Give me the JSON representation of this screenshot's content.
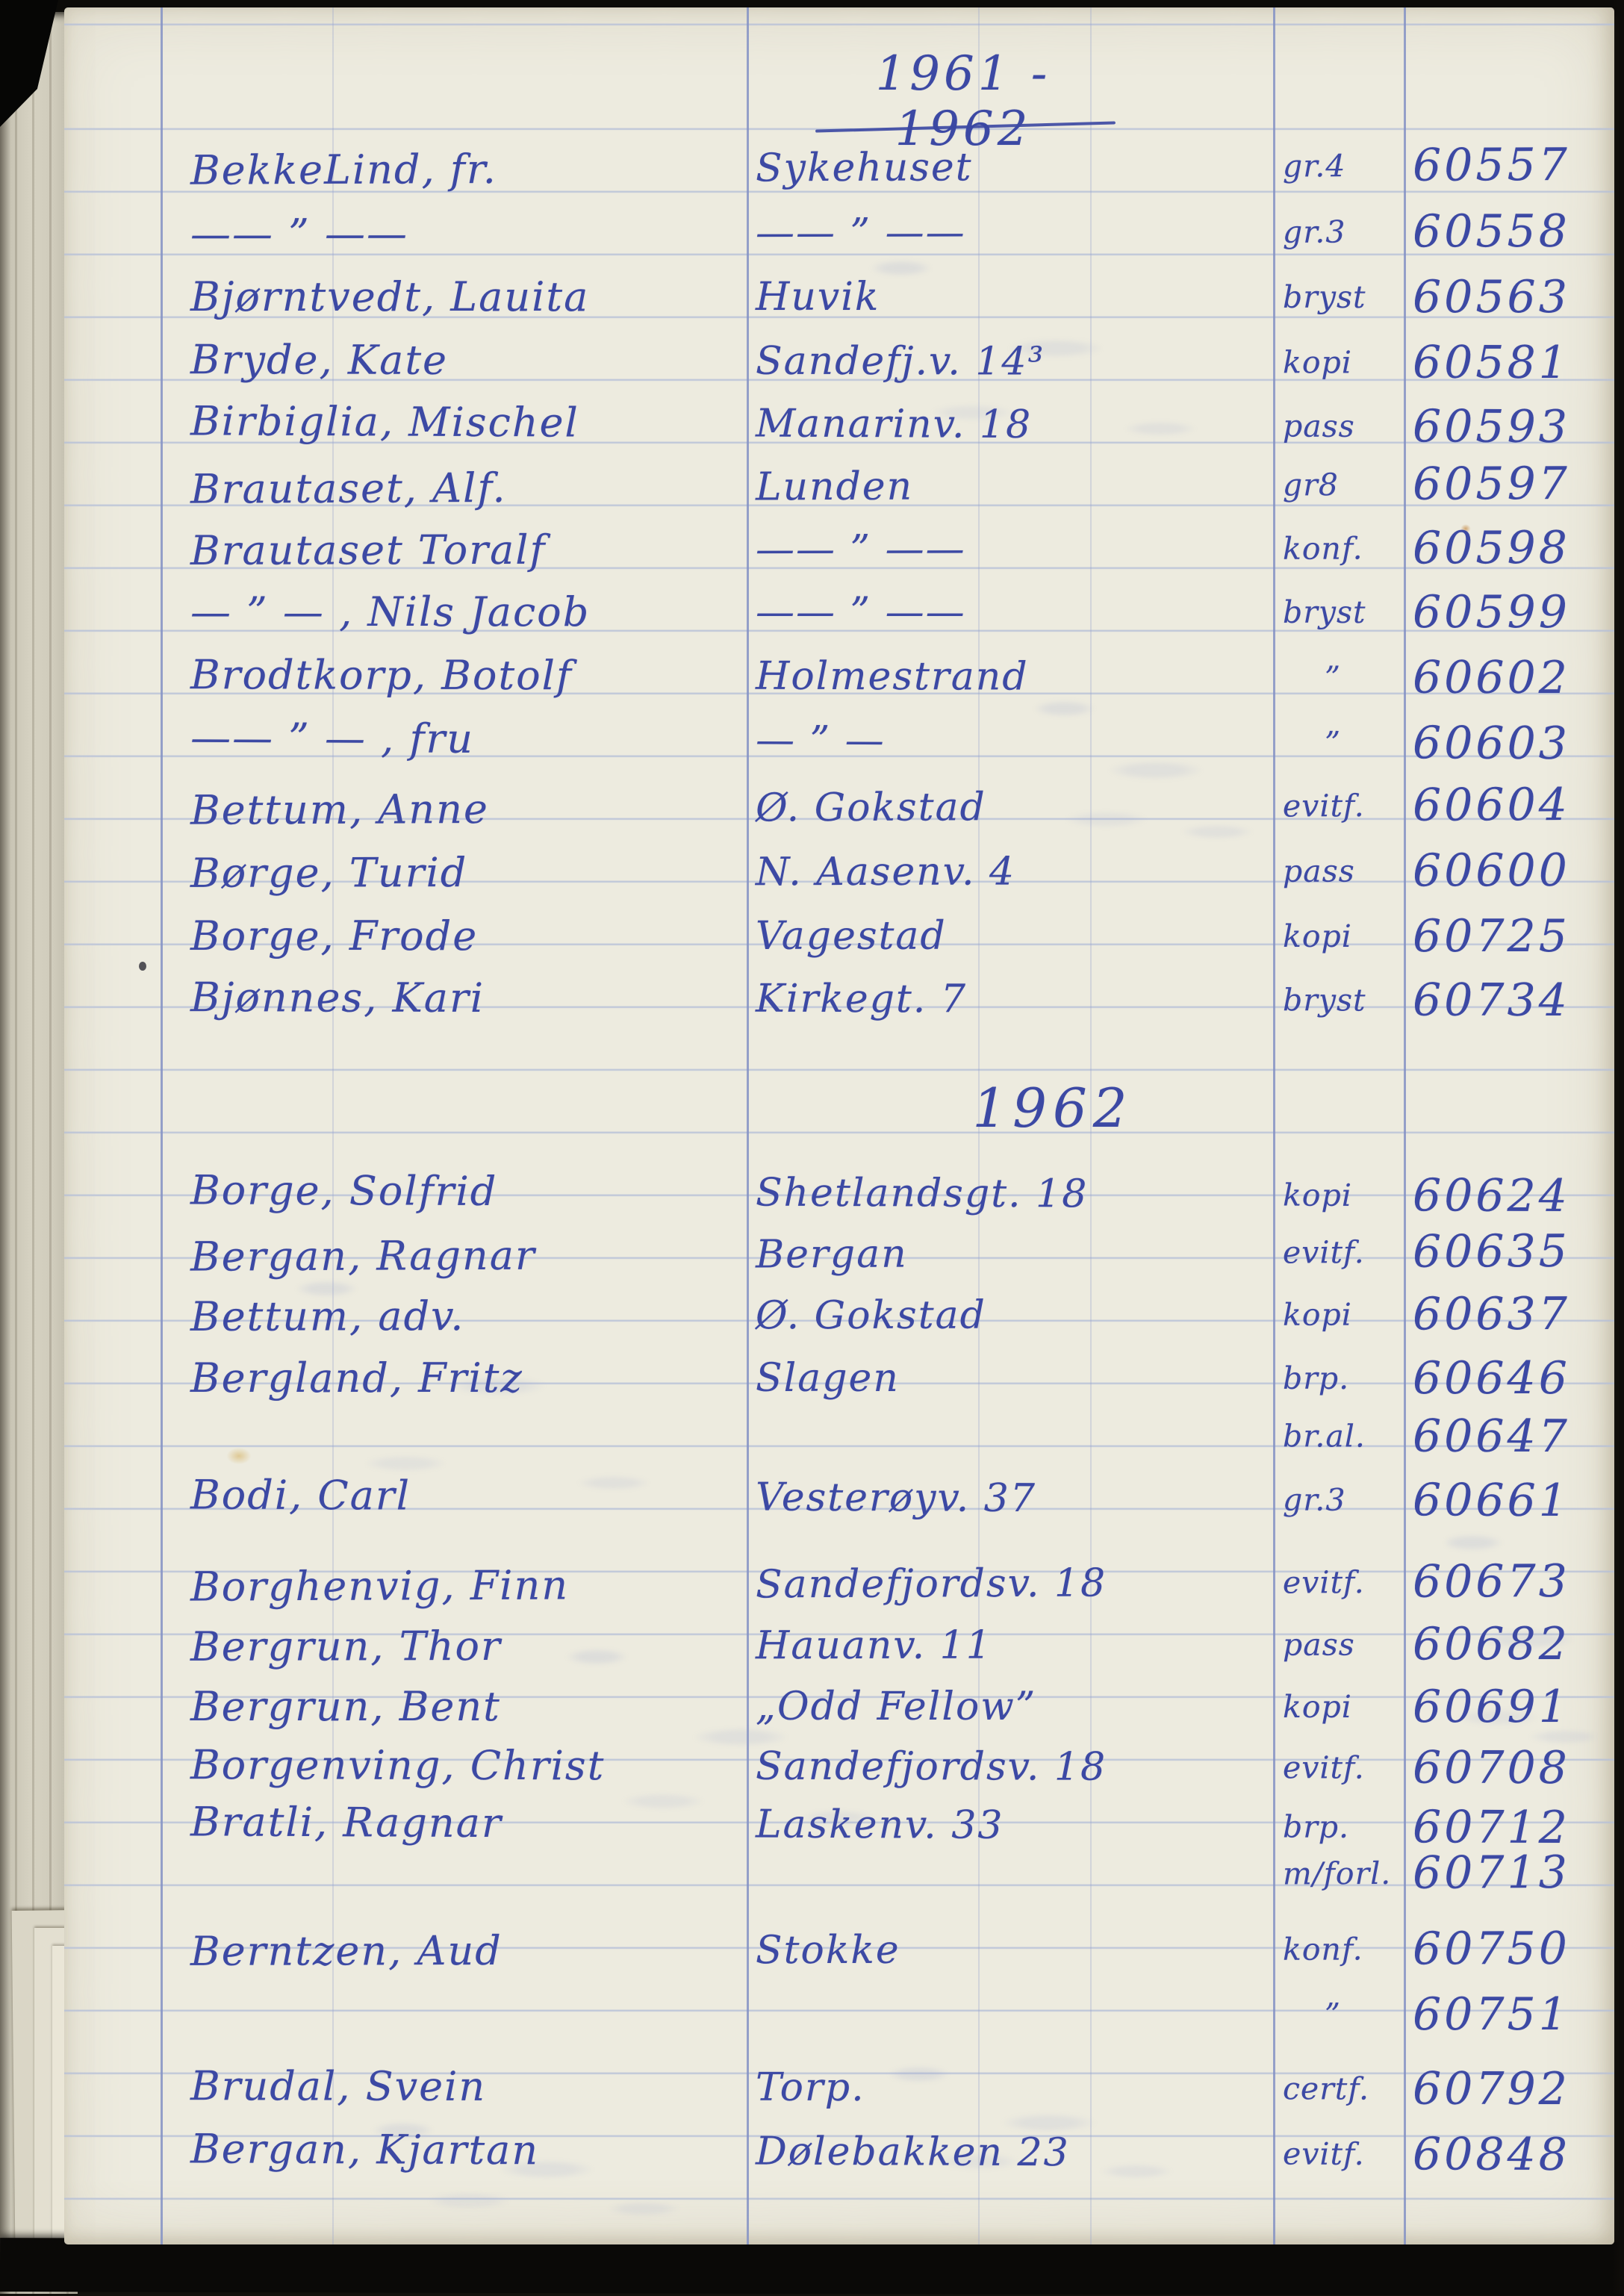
{
  "ink_color": "#3c49a4",
  "paper_color": "#edebdf",
  "title": "1961 - 1962",
  "section_header": "1962",
  "rows": [
    {
      "name": "BekkeLind, fr.",
      "address": "Sykehuset",
      "type": "gr.4",
      "number": "60557"
    },
    {
      "name": "—— ” ——",
      "address": "—— ” ——",
      "type": "gr.3",
      "number": "60558"
    },
    {
      "name": "Bjørntvedt, Lauita",
      "address": "Huvik",
      "type": "bryst",
      "number": "60563"
    },
    {
      "name": "Bryde, Kate",
      "address": "Sandefj.v. 14³",
      "type": "kopi",
      "number": "60581"
    },
    {
      "name": "Birbiglia, Mischel",
      "address": "Manarinv. 18",
      "type": "pass",
      "number": "60593"
    },
    {
      "name": "Brautaset, Alf.",
      "address": "Lunden",
      "type": "gr8",
      "number": "60597"
    },
    {
      "name": "Brautaset Toralf",
      "address": "—— ” ——",
      "type": "konf.",
      "number": "60598"
    },
    {
      "name": "— ” — , Nils Jacob",
      "address": "—— ” ——",
      "type": "bryst",
      "number": "60599"
    },
    {
      "name": "Brodtkorp, Botolf",
      "address": "Holmestrand",
      "type": "”",
      "number": "60602"
    },
    {
      "name": "—— ” — , fru",
      "address": "— ” —",
      "type": "”",
      "number": "60603"
    },
    {
      "name": "Bettum, Anne",
      "address": "Ø. Gokstad",
      "type": "evitf.",
      "number": "60604"
    },
    {
      "name": "Børge, Turid",
      "address": "N. Aasenv. 4",
      "type": "pass",
      "number": "60600"
    },
    {
      "name": "Borge, Frode",
      "address": "Vagestad",
      "type": "kopi",
      "number": "60725"
    },
    {
      "name": "Bjønnes, Kari",
      "address": "Kirkegt. 7",
      "type": "bryst",
      "number": "60734"
    },
    {
      "name": "Borge, Solfrid",
      "address": "Shetlandsgt. 18",
      "type": "kopi",
      "number": "60624"
    },
    {
      "name": "Bergan, Ragnar",
      "address": "Bergan",
      "type": "evitf.",
      "number": "60635"
    },
    {
      "name": "Bettum, adv.",
      "address": "Ø. Gokstad",
      "type": "kopi",
      "number": "60637"
    },
    {
      "name": "Bergland, Fritz",
      "address": "Slagen",
      "type": "brp.",
      "number": "60646"
    },
    {
      "name": "",
      "address": "",
      "type": "br.al.",
      "number": "60647"
    },
    {
      "name": "Bodi, Carl",
      "address": "Vesterøyv. 37",
      "type": "gr.3",
      "number": "60661"
    },
    {
      "name": "Borghenvig, Finn",
      "address": "Sandefjordsv. 18",
      "type": "evitf.",
      "number": "60673"
    },
    {
      "name": "Bergrun, Thor",
      "address": "Hauanv. 11",
      "type": "pass",
      "number": "60682"
    },
    {
      "name": "Bergrun, Bent",
      "address": "„Odd Fellow”",
      "type": "kopi",
      "number": "60691"
    },
    {
      "name": "Borgenving, Christ",
      "address": "Sandefjordsv. 18",
      "type": "evitf.",
      "number": "60708"
    },
    {
      "name": "Bratli, Ragnar",
      "address": "Laskenv. 33",
      "type": "brp.",
      "number": "60712"
    },
    {
      "name": "",
      "address": "",
      "type": "m/forl.",
      "number": "60713"
    },
    {
      "name": "Berntzen, Aud",
      "address": "Stokke",
      "type": "konf.",
      "number": "60750"
    },
    {
      "name": "",
      "address": "",
      "type": "”",
      "number": "60751"
    },
    {
      "name": "Brudal, Svein",
      "address": "Torp.",
      "type": "certf.",
      "number": "60792"
    },
    {
      "name": "Bergan, Kjartan",
      "address": "Dølebakken 23",
      "type": "evitf.",
      "number": "60848"
    }
  ]
}
